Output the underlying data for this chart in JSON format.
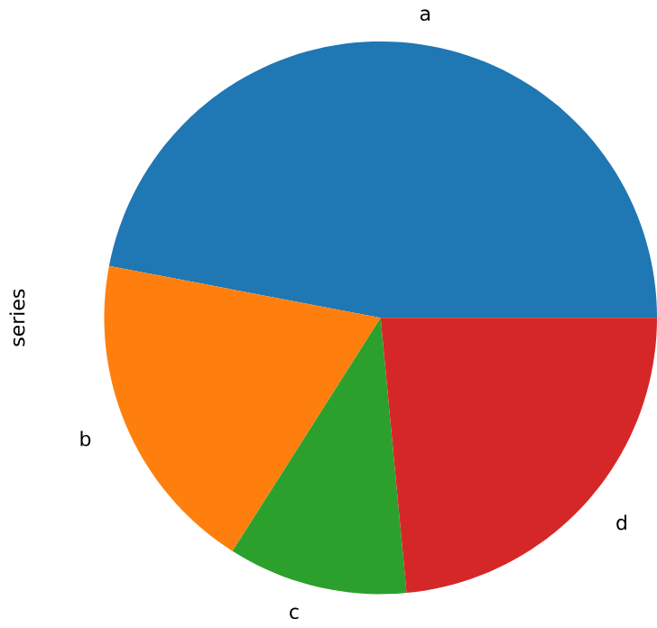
{
  "chart_data": {
    "type": "pie",
    "ylabel": "series",
    "categories": [
      "a",
      "b",
      "c",
      "d"
    ],
    "values": [
      47,
      19,
      10.5,
      23.5
    ],
    "colors": [
      "#1f77b4",
      "#ff7f0e",
      "#2ca02c",
      "#d62728"
    ]
  }
}
